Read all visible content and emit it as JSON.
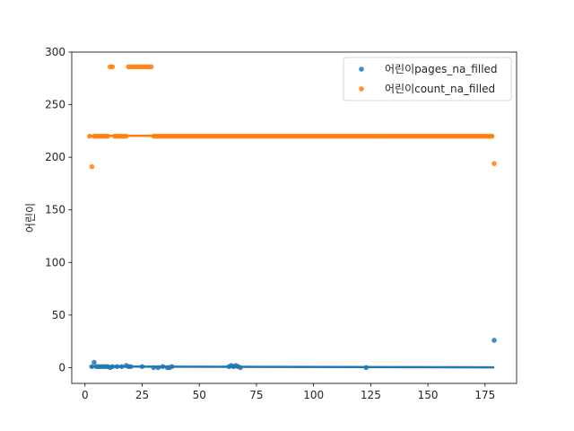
{
  "chart_data": {
    "type": "scatter",
    "title": "",
    "xlabel": "",
    "ylabel": "어린이",
    "xlim": [
      -5.8,
      188.8
    ],
    "ylim": [
      -15,
      300
    ],
    "xticks": [
      0,
      25,
      50,
      75,
      100,
      125,
      150,
      175
    ],
    "yticks": [
      0,
      50,
      100,
      150,
      200,
      250,
      300
    ],
    "grid": false,
    "legend_position": "top-right",
    "series": [
      {
        "name": "어린이pages_na_filled",
        "color": "#1f77b4",
        "marker": "circle",
        "points": [
          [
            3,
            1
          ],
          [
            4,
            5
          ],
          [
            5,
            1
          ],
          [
            6,
            1
          ],
          [
            7,
            1
          ],
          [
            8,
            1
          ],
          [
            9,
            1
          ],
          [
            10,
            1
          ],
          [
            11,
            0
          ],
          [
            12,
            1
          ],
          [
            14,
            1
          ],
          [
            16,
            1
          ],
          [
            18,
            2
          ],
          [
            19,
            1
          ],
          [
            20,
            1
          ],
          [
            25,
            1
          ],
          [
            30,
            0
          ],
          [
            32,
            0
          ],
          [
            34,
            1
          ],
          [
            36,
            0
          ],
          [
            37,
            0
          ],
          [
            38,
            1
          ],
          [
            63,
            1
          ],
          [
            64,
            2
          ],
          [
            65,
            1
          ],
          [
            66,
            2
          ],
          [
            67,
            1
          ],
          [
            68,
            0
          ],
          [
            123,
            0
          ],
          [
            179,
            26
          ]
        ],
        "trend": [
          [
            2,
            1.0
          ],
          [
            179,
            0.3
          ]
        ]
      },
      {
        "name": "어린이count_na_filled",
        "color": "#ff7f0e",
        "marker": "circle",
        "points": [
          [
            2,
            220
          ],
          [
            3,
            191
          ],
          [
            4,
            220
          ],
          [
            5,
            220
          ],
          [
            6,
            220
          ],
          [
            7,
            220
          ],
          [
            8,
            220
          ],
          [
            9,
            220
          ],
          [
            10,
            220
          ],
          [
            11,
            286
          ],
          [
            12,
            286
          ],
          [
            13,
            220
          ],
          [
            14,
            220
          ],
          [
            15,
            220
          ],
          [
            16,
            220
          ],
          [
            17,
            220
          ],
          [
            18,
            220
          ],
          [
            19,
            286
          ],
          [
            20,
            286
          ],
          [
            21,
            286
          ],
          [
            22,
            286
          ],
          [
            23,
            286
          ],
          [
            24,
            286
          ],
          [
            25,
            286
          ],
          [
            26,
            286
          ],
          [
            27,
            286
          ],
          [
            28,
            286
          ],
          [
            29,
            286
          ],
          [
            179,
            194
          ]
        ],
        "dense_ranges": [
          [
            30,
            178,
            1,
            220
          ]
        ],
        "trend": [
          [
            2,
            220.4
          ],
          [
            179,
            220.4
          ]
        ]
      }
    ]
  }
}
